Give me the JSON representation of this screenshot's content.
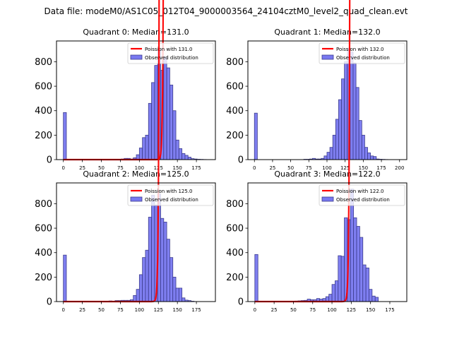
{
  "suptitle": "Data file: modeM0/AS1C05_012T04_9000003564_24104cztM0_level2_quad_clean.evt",
  "colors": {
    "bar_fill": "#7878f0",
    "bar_edge": "#3c3c8c",
    "poisson": "#ff0000"
  },
  "chart_data": [
    {
      "type": "bar",
      "title": "Quadrant 0: Median=131.0",
      "legend": [
        "Poission with 131.0",
        "Observed distribution"
      ],
      "legend_position": "top-right",
      "xlim": [
        -9,
        200
      ],
      "ylim": [
        0,
        970
      ],
      "xticks": [
        0,
        25,
        50,
        75,
        100,
        125,
        150,
        175
      ],
      "yticks": [
        0,
        200,
        400,
        600,
        800
      ],
      "bin_width": 4,
      "bins_start": [
        0,
        68,
        72,
        76,
        80,
        84,
        88,
        92,
        96,
        100,
        104,
        108,
        112,
        116,
        120,
        124,
        128,
        132,
        136,
        140,
        144,
        148,
        152,
        156,
        160,
        164,
        168,
        172,
        176,
        180,
        184
      ],
      "values": [
        385,
        3,
        2,
        5,
        10,
        10,
        5,
        15,
        40,
        95,
        180,
        200,
        460,
        630,
        770,
        900,
        730,
        840,
        750,
        610,
        400,
        160,
        90,
        50,
        35,
        20,
        8,
        5,
        3,
        2,
        1
      ],
      "poisson_mean": 131.0,
      "poisson_peak": 925
    },
    {
      "type": "bar",
      "title": "Quadrant 1: Median=132.0",
      "legend": [
        "Poission with 132.0",
        "Observed distribution"
      ],
      "legend_position": "top-right",
      "xlim": [
        -9,
        210
      ],
      "ylim": [
        0,
        970
      ],
      "xticks": [
        0,
        25,
        50,
        75,
        100,
        125,
        150,
        175,
        200
      ],
      "yticks": [
        0,
        200,
        400,
        600,
        800
      ],
      "bin_width": 4,
      "bins_start": [
        0,
        68,
        72,
        76,
        80,
        84,
        88,
        92,
        96,
        100,
        104,
        108,
        112,
        116,
        120,
        124,
        128,
        132,
        136,
        140,
        144,
        148,
        152,
        156,
        160,
        164,
        168,
        172,
        176,
        180
      ],
      "values": [
        380,
        3,
        3,
        5,
        10,
        5,
        5,
        10,
        30,
        60,
        100,
        200,
        330,
        490,
        660,
        800,
        910,
        880,
        790,
        590,
        320,
        200,
        100,
        55,
        30,
        25,
        5,
        3,
        2,
        1
      ],
      "poisson_mean": 132.0,
      "poisson_peak": 940
    },
    {
      "type": "bar",
      "title": "Quadrant 2: Median=125.0",
      "legend": [
        "Poission with 125.0",
        "Observed distribution"
      ],
      "legend_position": "top-right",
      "xlim": [
        -9,
        200
      ],
      "ylim": [
        0,
        970
      ],
      "xticks": [
        0,
        25,
        50,
        75,
        100,
        125,
        150,
        175
      ],
      "yticks": [
        0,
        200,
        400,
        600,
        800
      ],
      "bin_width": 4,
      "bins_start": [
        0,
        60,
        68,
        72,
        76,
        80,
        84,
        88,
        92,
        96,
        100,
        104,
        108,
        112,
        116,
        120,
        124,
        128,
        132,
        136,
        140,
        144,
        148,
        152,
        156,
        160,
        164,
        168
      ],
      "values": [
        380,
        5,
        8,
        8,
        10,
        10,
        10,
        15,
        50,
        100,
        220,
        360,
        420,
        690,
        870,
        790,
        880,
        680,
        650,
        510,
        360,
        200,
        110,
        110,
        30,
        12,
        8,
        3
      ],
      "poisson_mean": 125.0,
      "poisson_peak": 930
    },
    {
      "type": "bar",
      "title": "Quadrant 3: Median=122.0",
      "legend": [
        "Poission with 122.0",
        "Observed distribution"
      ],
      "legend_position": "top-right",
      "xlim": [
        -9,
        197
      ],
      "ylim": [
        0,
        970
      ],
      "xticks": [
        0,
        25,
        50,
        75,
        100,
        125,
        150,
        175
      ],
      "yticks": [
        0,
        200,
        400,
        600,
        800
      ],
      "bin_width": 4,
      "bins_start": [
        0,
        52,
        56,
        60,
        64,
        68,
        72,
        76,
        80,
        84,
        88,
        92,
        96,
        100,
        104,
        108,
        112,
        116,
        120,
        124,
        128,
        132,
        136,
        140,
        144,
        148,
        152,
        156
      ],
      "values": [
        385,
        4,
        6,
        8,
        10,
        20,
        15,
        15,
        25,
        20,
        25,
        40,
        60,
        140,
        170,
        375,
        370,
        685,
        670,
        920,
        685,
        615,
        525,
        300,
        275,
        100,
        45,
        35
      ],
      "poisson_mean": 122.0,
      "poisson_peak": 925
    }
  ]
}
